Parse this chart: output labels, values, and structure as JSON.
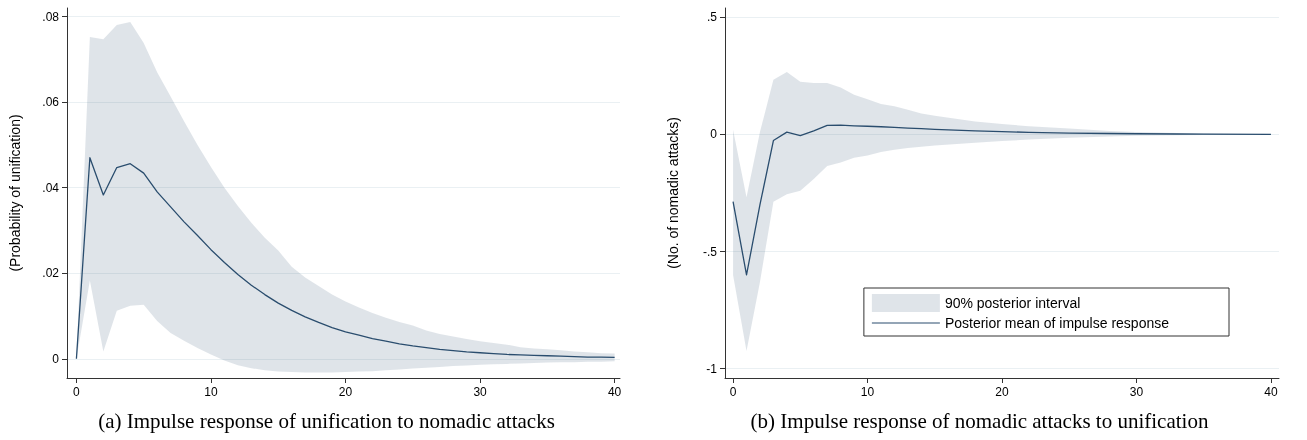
{
  "chart_data": [
    {
      "type": "line",
      "title": "(a) Impulse response of unification to nomadic attacks",
      "ylabel": "(Probability of unification)",
      "xlim": [
        -0.7,
        40.4
      ],
      "xticks": [
        0,
        10,
        20,
        30,
        40
      ],
      "ylim": [
        -0.0045,
        0.082
      ],
      "yticks": [
        {
          "value": 0,
          "label": "0"
        },
        {
          "value": 0.02,
          "label": ".02"
        },
        {
          "value": 0.04,
          "label": ".04"
        },
        {
          "value": 0.06,
          "label": ".06"
        },
        {
          "value": 0.08,
          "label": ".08"
        }
      ],
      "grid": "y",
      "legend": false,
      "series": [
        {
          "color": "#2a4d6e",
          "x": [
            0,
            1,
            2,
            3,
            4,
            5,
            6,
            7,
            8,
            9,
            10,
            11,
            12,
            13,
            14,
            15,
            16,
            17,
            18,
            19,
            20,
            21,
            22,
            23,
            24,
            25,
            26,
            27,
            28,
            29,
            30,
            31,
            32,
            33,
            34,
            35,
            36,
            37,
            38,
            39,
            40
          ],
          "values": [
            0,
            0.047,
            0.0383,
            0.0447,
            0.0456,
            0.0434,
            0.039,
            0.0355,
            0.032,
            0.0288,
            0.0255,
            0.0225,
            0.0197,
            0.0172,
            0.015,
            0.013,
            0.0113,
            0.0098,
            0.0085,
            0.0073,
            0.0063,
            0.0055,
            0.0047,
            0.0041,
            0.0035,
            0.003,
            0.0026,
            0.0022,
            0.0019,
            0.0016,
            0.0014,
            0.0012,
            0.001,
            0.0009,
            0.0008,
            0.0007,
            0.0006,
            0.0005,
            0.0004,
            0.0004,
            0.0003
          ],
          "lower": [
            0,
            0.0183,
            0.0017,
            0.0112,
            0.0124,
            0.0126,
            0.0088,
            0.006,
            0.0042,
            0.0025,
            0.001,
            -0.0004,
            -0.0015,
            -0.0022,
            -0.0027,
            -0.003,
            -0.0031,
            -0.0032,
            -0.0032,
            -0.0032,
            -0.0031,
            -0.003,
            -0.0029,
            -0.0027,
            -0.0025,
            -0.0023,
            -0.0021,
            -0.0019,
            -0.0017,
            -0.0016,
            -0.0014,
            -0.0013,
            -0.0012,
            -0.0011,
            -0.001,
            -0.0009,
            -0.0008,
            -0.0008,
            -0.0007,
            -0.0007,
            -0.0006
          ],
          "upper": [
            0,
            0.0752,
            0.0747,
            0.078,
            0.0787,
            0.0738,
            0.067,
            0.0613,
            0.0555,
            0.05,
            0.0448,
            0.04,
            0.0357,
            0.0318,
            0.0283,
            0.0253,
            0.0215,
            0.019,
            0.017,
            0.015,
            0.0134,
            0.012,
            0.0107,
            0.0096,
            0.0086,
            0.0078,
            0.0066,
            0.0058,
            0.0052,
            0.0046,
            0.0041,
            0.0037,
            0.0033,
            0.0027,
            0.0024,
            0.0022,
            0.002,
            0.0017,
            0.0015,
            0.0013,
            0.0012
          ]
        }
      ]
    },
    {
      "type": "line",
      "title": "(b) Impulse response of nomadic attacks to unification",
      "ylabel": "(No. of nomadic attacks)",
      "xlim": [
        -0.6,
        40.6
      ],
      "xticks": [
        0,
        10,
        20,
        30,
        40
      ],
      "ylim": [
        -1.04,
        0.54
      ],
      "yticks": [
        {
          "value": -1,
          "label": "-1"
        },
        {
          "value": -0.5,
          "label": "-.5"
        },
        {
          "value": 0,
          "label": "0"
        },
        {
          "value": 0.5,
          "label": ".5"
        }
      ],
      "grid": "y",
      "legend": "bottom right",
      "annotations": [
        "90% posterior interval"
      ],
      "series": [
        {
          "name": "Posterior mean of impulse response",
          "color": "#2a4d6e",
          "x": [
            0,
            1,
            2,
            3,
            4,
            5,
            6,
            7,
            8,
            9,
            10,
            11,
            12,
            13,
            14,
            15,
            18,
            20,
            22,
            25,
            28,
            30,
            33,
            35,
            40
          ],
          "values": [
            -0.287,
            -0.6,
            -0.3,
            -0.026,
            0.01,
            -0.005,
            0.015,
            0.039,
            0.04,
            0.037,
            0.035,
            0.033,
            0.03,
            0.027,
            0.025,
            0.022,
            0.015,
            0.012,
            0.009,
            0.006,
            0.004,
            0.003,
            0.002,
            0.001,
            0
          ],
          "lower": [
            -0.6,
            -0.925,
            -0.63,
            -0.287,
            -0.255,
            -0.24,
            -0.19,
            -0.135,
            -0.12,
            -0.1,
            -0.09,
            -0.075,
            -0.065,
            -0.058,
            -0.052,
            -0.047,
            -0.035,
            -0.028,
            -0.022,
            -0.014,
            -0.009,
            -0.006,
            -0.003,
            -0.002,
            -0.001
          ],
          "upper": [
            0.02,
            -0.268,
            0.01,
            0.234,
            0.267,
            0.225,
            0.22,
            0.22,
            0.2,
            0.17,
            0.15,
            0.13,
            0.12,
            0.105,
            0.09,
            0.08,
            0.055,
            0.045,
            0.035,
            0.025,
            0.015,
            0.01,
            0.006,
            0.004,
            0.001
          ]
        }
      ]
    }
  ]
}
